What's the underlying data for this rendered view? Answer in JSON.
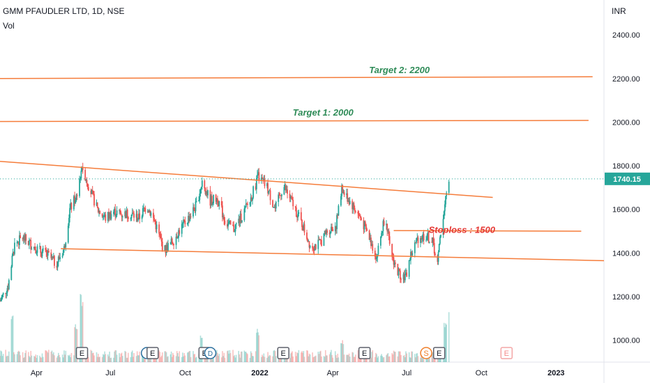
{
  "header": {
    "title": "GMM PFAUDLER LTD, 1D, NSE",
    "volume_label": "Vol",
    "currency": "INR"
  },
  "colors": {
    "up": "#26a69a",
    "down": "#ef5350",
    "trendline": "#f57c3a",
    "target_text": "#2e8b57",
    "stoploss_text": "#e53935",
    "price_badge": "#26a69a",
    "dotted_price_line": "#26a69a"
  },
  "chart_data": {
    "type": "candlestick",
    "symbol": "GMM PFAUDLER LTD",
    "interval": "1D",
    "exchange": "NSE",
    "ylim": [
      900,
      2560
    ],
    "y_ticks": [
      1000,
      1200,
      1400,
      1600,
      1800,
      2000,
      2200,
      2400
    ],
    "y_tick_labels": [
      "1000.00",
      "1200.00",
      "1400.00",
      "1600.00",
      "1800.00",
      "2000.00",
      "2200.00",
      "2400.00"
    ],
    "x_start": "2021-02-15",
    "x_end": "2023-03-01",
    "x_ticks": [
      {
        "date": "2021-04-01",
        "label": "Apr"
      },
      {
        "date": "2021-07-01",
        "label": "Jul"
      },
      {
        "date": "2021-10-01",
        "label": "Oct"
      },
      {
        "date": "2022-01-01",
        "label": "2022"
      },
      {
        "date": "2022-04-01",
        "label": "Apr"
      },
      {
        "date": "2022-07-01",
        "label": "Jul"
      },
      {
        "date": "2022-10-01",
        "label": "Oct"
      },
      {
        "date": "2023-01-01",
        "label": "2023"
      }
    ],
    "last_price": 1740.15,
    "last_price_label": "1740.15",
    "close_path": [
      [
        "2021-02-15",
        1180
      ],
      [
        "2021-02-25",
        1250
      ],
      [
        "2021-03-05",
        1440
      ],
      [
        "2021-03-15",
        1470
      ],
      [
        "2021-03-25",
        1440
      ],
      [
        "2021-04-05",
        1410
      ],
      [
        "2021-04-15",
        1390
      ],
      [
        "2021-04-25",
        1350
      ],
      [
        "2021-05-05",
        1420
      ],
      [
        "2021-05-12",
        1600
      ],
      [
        "2021-05-20",
        1660
      ],
      [
        "2021-05-27",
        1800
      ],
      [
        "2021-06-05",
        1700
      ],
      [
        "2021-06-15",
        1600
      ],
      [
        "2021-06-25",
        1560
      ],
      [
        "2021-07-05",
        1590
      ],
      [
        "2021-07-15",
        1580
      ],
      [
        "2021-07-25",
        1580
      ],
      [
        "2021-08-05",
        1560
      ],
      [
        "2021-08-15",
        1620
      ],
      [
        "2021-08-25",
        1540
      ],
      [
        "2021-09-05",
        1410
      ],
      [
        "2021-09-15",
        1450
      ],
      [
        "2021-09-25",
        1510
      ],
      [
        "2021-10-05",
        1560
      ],
      [
        "2021-10-15",
        1620
      ],
      [
        "2021-10-22",
        1730
      ],
      [
        "2021-11-01",
        1640
      ],
      [
        "2021-11-10",
        1650
      ],
      [
        "2021-11-20",
        1540
      ],
      [
        "2021-11-30",
        1510
      ],
      [
        "2021-12-10",
        1570
      ],
      [
        "2021-12-20",
        1640
      ],
      [
        "2021-12-30",
        1750
      ],
      [
        "2022-01-10",
        1700
      ],
      [
        "2022-01-20",
        1600
      ],
      [
        "2022-01-30",
        1710
      ],
      [
        "2022-02-10",
        1630
      ],
      [
        "2022-02-20",
        1550
      ],
      [
        "2022-03-05",
        1430
      ],
      [
        "2022-03-15",
        1440
      ],
      [
        "2022-03-25",
        1500
      ],
      [
        "2022-04-05",
        1530
      ],
      [
        "2022-04-12",
        1690
      ],
      [
        "2022-04-25",
        1620
      ],
      [
        "2022-05-05",
        1560
      ],
      [
        "2022-05-15",
        1480
      ],
      [
        "2022-05-25",
        1380
      ],
      [
        "2022-06-05",
        1590
      ],
      [
        "2022-06-10",
        1420
      ],
      [
        "2022-06-20",
        1310
      ],
      [
        "2022-06-30",
        1290
      ],
      [
        "2022-07-05",
        1380
      ],
      [
        "2022-07-15",
        1470
      ],
      [
        "2022-07-25",
        1480
      ],
      [
        "2022-08-02",
        1450
      ],
      [
        "2022-08-08",
        1350
      ],
      [
        "2022-08-12",
        1500
      ],
      [
        "2022-08-18",
        1640
      ],
      [
        "2022-08-22",
        1740
      ]
    ],
    "volume_spikes": [
      {
        "date": "2021-03-01",
        "v": 0.8
      },
      {
        "date": "2021-05-27",
        "v": 1.0
      },
      {
        "date": "2021-05-20",
        "v": 0.55
      },
      {
        "date": "2021-10-22",
        "v": 0.45
      },
      {
        "date": "2021-12-30",
        "v": 0.5
      },
      {
        "date": "2022-04-12",
        "v": 0.35
      },
      {
        "date": "2022-08-22",
        "v": 0.75
      },
      {
        "date": "2022-08-18",
        "v": 0.6
      }
    ],
    "trendlines": [
      {
        "name": "resistance",
        "p1": [
          "2021-02-15",
          1820
        ],
        "p2": [
          "2022-10-15",
          1655
        ]
      },
      {
        "name": "support",
        "p1": [
          "2021-05-01",
          1420
        ],
        "p2": [
          "2023-03-01",
          1365
        ]
      },
      {
        "name": "target2",
        "p1": [
          "2021-02-15",
          2200
        ],
        "p2": [
          "2023-02-15",
          2208
        ]
      },
      {
        "name": "target1",
        "p1": [
          "2021-02-15",
          2003
        ],
        "p2": [
          "2023-02-10",
          2008
        ]
      },
      {
        "name": "stoploss",
        "p1": [
          "2022-06-15",
          1503
        ],
        "p2": [
          "2023-02-01",
          1500
        ]
      }
    ],
    "annotations": [
      {
        "text": "Target 2: 2200",
        "date": "2022-06-22",
        "y": 2225,
        "class": "target"
      },
      {
        "text": "Target 1: 2000",
        "date": "2022-03-20",
        "y": 2030,
        "class": "target"
      },
      {
        "text": "Stoploss : 1500",
        "date": "2022-09-07",
        "y": 1492,
        "class": "stoploss"
      }
    ],
    "events": [
      {
        "date": "2021-05-27",
        "label": "E",
        "style": "earnings"
      },
      {
        "date": "2021-08-15",
        "label": "",
        "style": "dividend"
      },
      {
        "date": "2021-08-22",
        "label": "E",
        "style": "earnings"
      },
      {
        "date": "2021-10-25",
        "label": "E",
        "style": "earnings"
      },
      {
        "date": "2021-11-01",
        "label": "D",
        "style": "dividend"
      },
      {
        "date": "2022-01-30",
        "label": "E",
        "style": "earnings"
      },
      {
        "date": "2022-05-10",
        "label": "E",
        "style": "earnings"
      },
      {
        "date": "2022-07-25",
        "label": "S",
        "style": "split"
      },
      {
        "date": "2022-08-10",
        "label": "E",
        "style": "earnings"
      },
      {
        "date": "2022-11-01",
        "label": "E",
        "style": "future-earnings"
      }
    ]
  }
}
